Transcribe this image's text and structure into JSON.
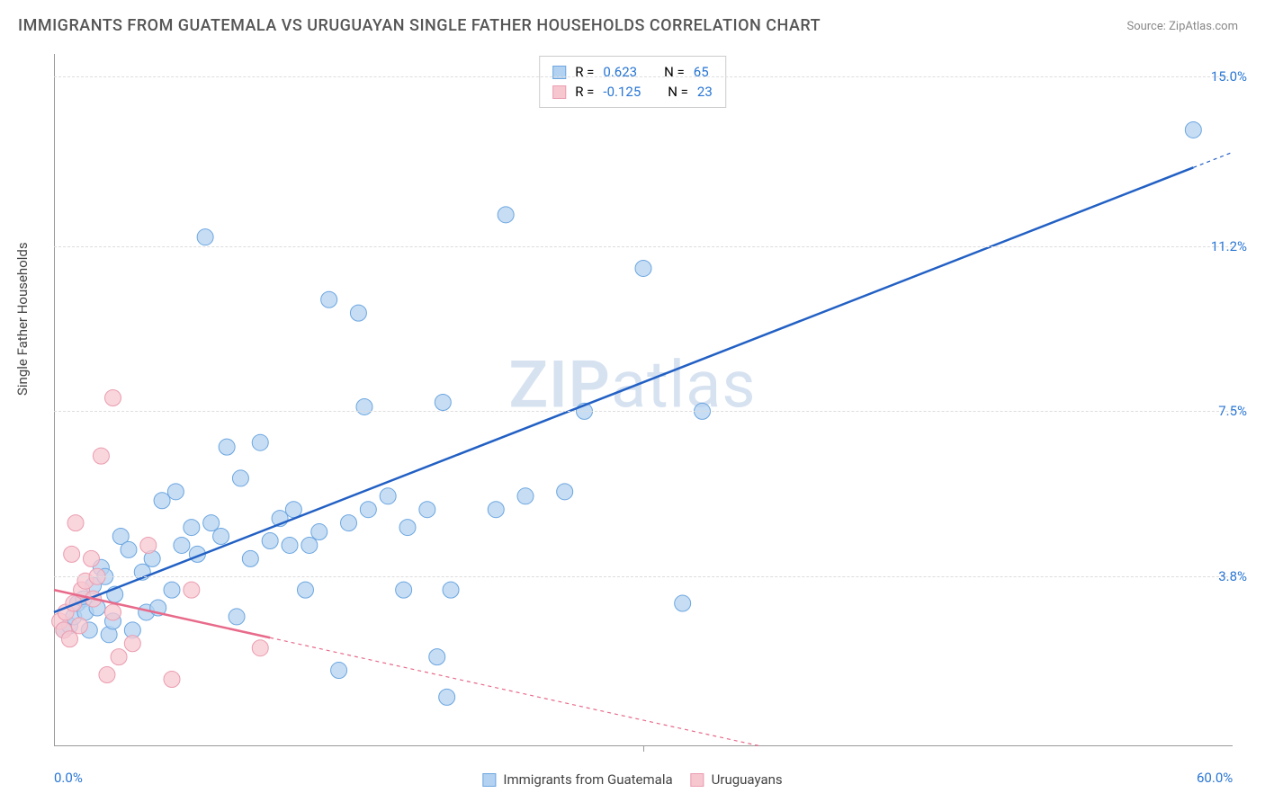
{
  "title": "IMMIGRANTS FROM GUATEMALA VS URUGUAYAN SINGLE FATHER HOUSEHOLDS CORRELATION CHART",
  "source": "Source: ZipAtlas.com",
  "y_axis_label": "Single Father Households",
  "watermark": "ZIPatlas",
  "chart": {
    "type": "scatter",
    "xlim": [
      0,
      60
    ],
    "ylim": [
      0,
      15.5
    ],
    "x_ticks": [
      0,
      60
    ],
    "x_tick_labels": [
      "0.0%",
      "60.0%"
    ],
    "x_minor_ticks": [
      30
    ],
    "y_ticks": [
      3.8,
      7.5,
      11.2,
      15.0
    ],
    "y_tick_labels": [
      "3.8%",
      "7.5%",
      "11.2%",
      "15.0%"
    ],
    "background_color": "#ffffff",
    "grid_color": "#dddddd",
    "axis_color": "#999999",
    "tick_label_color": "#2976d4",
    "series": [
      {
        "name": "Immigrants from Guatemala",
        "marker_color_fill": "#b3d1f0",
        "marker_color_stroke": "#6ca6e0",
        "marker_radius": 9,
        "line_color": "#2260c4",
        "line_width": 2.5,
        "line_dash_extend": "4 4",
        "R": 0.623,
        "N": 65,
        "trend": {
          "x1": 0,
          "y1": 3.0,
          "x2": 60,
          "y2": 13.3
        },
        "points": [
          [
            0.5,
            2.6
          ],
          [
            0.8,
            2.7
          ],
          [
            1.0,
            2.9
          ],
          [
            1.2,
            3.2
          ],
          [
            1.5,
            3.3
          ],
          [
            1.6,
            3.0
          ],
          [
            1.8,
            2.6
          ],
          [
            2.0,
            3.6
          ],
          [
            2.2,
            3.1
          ],
          [
            2.4,
            4.0
          ],
          [
            2.6,
            3.8
          ],
          [
            2.8,
            2.5
          ],
          [
            3.0,
            2.8
          ],
          [
            3.1,
            3.4
          ],
          [
            3.4,
            4.7
          ],
          [
            3.8,
            4.4
          ],
          [
            4.0,
            2.6
          ],
          [
            4.5,
            3.9
          ],
          [
            4.7,
            3.0
          ],
          [
            5.0,
            4.2
          ],
          [
            5.3,
            3.1
          ],
          [
            5.5,
            5.5
          ],
          [
            6.0,
            3.5
          ],
          [
            6.2,
            5.7
          ],
          [
            6.5,
            4.5
          ],
          [
            7.0,
            4.9
          ],
          [
            7.3,
            4.3
          ],
          [
            7.7,
            11.4
          ],
          [
            8.0,
            5.0
          ],
          [
            8.5,
            4.7
          ],
          [
            8.8,
            6.7
          ],
          [
            9.3,
            2.9
          ],
          [
            9.5,
            6.0
          ],
          [
            10.0,
            4.2
          ],
          [
            10.5,
            6.8
          ],
          [
            11.0,
            4.6
          ],
          [
            11.5,
            5.1
          ],
          [
            12.0,
            4.5
          ],
          [
            12.2,
            5.3
          ],
          [
            12.8,
            3.5
          ],
          [
            13.0,
            4.5
          ],
          [
            13.5,
            4.8
          ],
          [
            14.0,
            10.0
          ],
          [
            14.5,
            1.7
          ],
          [
            15.0,
            5.0
          ],
          [
            15.5,
            9.7
          ],
          [
            15.8,
            7.6
          ],
          [
            16.0,
            5.3
          ],
          [
            17.0,
            5.6
          ],
          [
            17.8,
            3.5
          ],
          [
            18.0,
            4.9
          ],
          [
            19.0,
            5.3
          ],
          [
            19.5,
            2.0
          ],
          [
            19.8,
            7.7
          ],
          [
            20.0,
            1.1
          ],
          [
            20.2,
            3.5
          ],
          [
            22.5,
            5.3
          ],
          [
            23.0,
            11.9
          ],
          [
            24.0,
            5.6
          ],
          [
            26.0,
            5.7
          ],
          [
            27.0,
            7.5
          ],
          [
            30.0,
            10.7
          ],
          [
            32.0,
            3.2
          ],
          [
            33.0,
            7.5
          ],
          [
            58.0,
            13.8
          ]
        ]
      },
      {
        "name": "Uruguayans",
        "marker_color_fill": "#f7c7d0",
        "marker_color_stroke": "#ea9db0",
        "marker_radius": 9,
        "line_color": "#e86a8a",
        "line_width": 2.5,
        "line_dash_extend": "4 4",
        "R": -0.125,
        "N": 23,
        "trend": {
          "x1": 0,
          "y1": 3.5,
          "x2": 36,
          "y2": 0.0
        },
        "trend_solid_end_x": 11,
        "points": [
          [
            0.3,
            2.8
          ],
          [
            0.5,
            2.6
          ],
          [
            0.6,
            3.0
          ],
          [
            0.8,
            2.4
          ],
          [
            0.9,
            4.3
          ],
          [
            1.0,
            3.2
          ],
          [
            1.1,
            5.0
          ],
          [
            1.3,
            2.7
          ],
          [
            1.4,
            3.5
          ],
          [
            1.6,
            3.7
          ],
          [
            1.9,
            4.2
          ],
          [
            2.0,
            3.3
          ],
          [
            2.2,
            3.8
          ],
          [
            2.4,
            6.5
          ],
          [
            2.7,
            1.6
          ],
          [
            3.0,
            3.0
          ],
          [
            3.0,
            7.8
          ],
          [
            3.3,
            2.0
          ],
          [
            4.0,
            2.3
          ],
          [
            4.8,
            4.5
          ],
          [
            6.0,
            1.5
          ],
          [
            7.0,
            3.5
          ],
          [
            10.5,
            2.2
          ]
        ]
      }
    ]
  },
  "legend_top": {
    "rows": [
      {
        "swatch_fill": "#b3d1f0",
        "swatch_stroke": "#6ca6e0",
        "r_label": "R =",
        "r_val": "0.623",
        "n_label": "N =",
        "n_val": "65"
      },
      {
        "swatch_fill": "#f7c7d0",
        "swatch_stroke": "#ea9db0",
        "r_label": "R =",
        "r_val": "-0.125",
        "n_label": "N =",
        "n_val": "23"
      }
    ]
  },
  "legend_bottom": {
    "items": [
      {
        "swatch_fill": "#b3d1f0",
        "swatch_stroke": "#6ca6e0",
        "label": "Immigrants from Guatemala"
      },
      {
        "swatch_fill": "#f7c7d0",
        "swatch_stroke": "#ea9db0",
        "label": "Uruguayans"
      }
    ]
  }
}
